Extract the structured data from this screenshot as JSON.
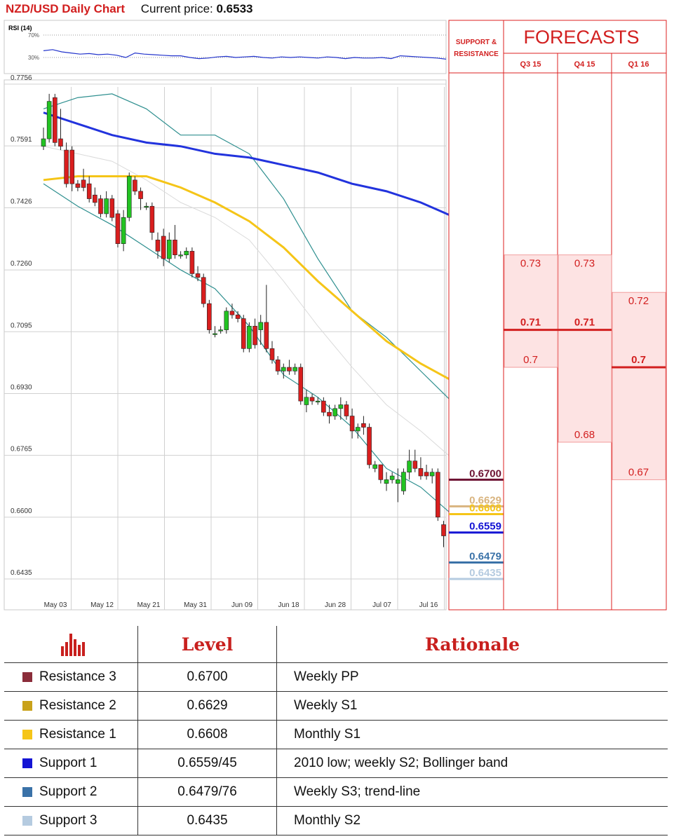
{
  "header": {
    "title": "NZD/USD Daily Chart",
    "price_label": "Current price:",
    "price_value": "0.6533"
  },
  "colors": {
    "accent": "#d21f1f",
    "bullish": "#22c322",
    "bearish": "#d91e1e",
    "sma_long": "#2233dd",
    "sma_short": "#f5c518",
    "bollinger": "#2e8f8f",
    "rsi": "#2233cc"
  },
  "rsi_panel": {
    "label": "RSI (14)",
    "level_high": "70%",
    "level_low": "30%",
    "values": [
      42,
      44,
      40,
      38,
      36,
      37,
      35,
      36,
      34,
      30,
      38,
      36,
      35,
      34,
      33,
      33,
      30,
      28,
      29,
      31,
      32,
      30,
      31,
      32,
      30,
      29,
      31,
      30,
      31,
      30,
      29,
      31,
      30,
      28,
      30,
      29,
      29,
      30,
      28,
      33,
      32,
      31,
      30,
      29,
      27
    ]
  },
  "chart_data": {
    "type": "candlestick",
    "title": "NZD/USD Daily Chart",
    "y_ticks": [
      "0.7756",
      "0.7591",
      "0.7426",
      "0.7260",
      "0.7095",
      "0.6930",
      "0.6765",
      "0.6600",
      "0.6435"
    ],
    "x_ticks": [
      "May 03",
      "May 12",
      "May 21",
      "May 31",
      "Jun 09",
      "Jun 18",
      "Jun 28",
      "Jul 07",
      "Jul 16"
    ],
    "ylim": [
      0.637,
      0.7756
    ],
    "grid": true,
    "candles": [
      [
        0.759,
        0.764,
        0.758,
        0.761
      ],
      [
        0.761,
        0.773,
        0.76,
        0.771
      ],
      [
        0.772,
        0.773,
        0.759,
        0.76
      ],
      [
        0.761,
        0.769,
        0.758,
        0.759
      ],
      [
        0.758,
        0.76,
        0.748,
        0.749
      ],
      [
        0.758,
        0.759,
        0.747,
        0.749
      ],
      [
        0.749,
        0.75,
        0.747,
        0.748
      ],
      [
        0.75,
        0.753,
        0.747,
        0.748
      ],
      [
        0.749,
        0.751,
        0.744,
        0.745
      ],
      [
        0.746,
        0.748,
        0.743,
        0.744
      ],
      [
        0.745,
        0.746,
        0.74,
        0.741
      ],
      [
        0.741,
        0.747,
        0.74,
        0.745
      ],
      [
        0.745,
        0.746,
        0.739,
        0.74
      ],
      [
        0.741,
        0.742,
        0.732,
        0.733
      ],
      [
        0.733,
        0.742,
        0.731,
        0.74
      ],
      [
        0.74,
        0.752,
        0.739,
        0.751
      ],
      [
        0.75,
        0.751,
        0.746,
        0.747
      ],
      [
        0.747,
        0.748,
        0.742,
        0.745
      ],
      [
        0.743,
        0.744,
        0.742,
        0.743
      ],
      [
        0.743,
        0.744,
        0.734,
        0.736
      ],
      [
        0.734,
        0.736,
        0.729,
        0.731
      ],
      [
        0.735,
        0.737,
        0.727,
        0.729
      ],
      [
        0.729,
        0.736,
        0.728,
        0.734
      ],
      [
        0.734,
        0.738,
        0.729,
        0.73
      ],
      [
        0.73,
        0.731,
        0.729,
        0.73
      ],
      [
        0.73,
        0.732,
        0.729,
        0.731
      ],
      [
        0.731,
        0.732,
        0.724,
        0.725
      ],
      [
        0.725,
        0.727,
        0.723,
        0.724
      ],
      [
        0.724,
        0.725,
        0.716,
        0.717
      ],
      [
        0.717,
        0.718,
        0.709,
        0.71
      ],
      [
        0.709,
        0.711,
        0.708,
        0.709
      ],
      [
        0.71,
        0.711,
        0.709,
        0.71
      ],
      [
        0.71,
        0.716,
        0.709,
        0.715
      ],
      [
        0.715,
        0.717,
        0.713,
        0.714
      ],
      [
        0.714,
        0.715,
        0.712,
        0.713
      ],
      [
        0.713,
        0.714,
        0.704,
        0.705
      ],
      [
        0.705,
        0.712,
        0.704,
        0.711
      ],
      [
        0.711,
        0.713,
        0.705,
        0.706
      ],
      [
        0.71,
        0.714,
        0.706,
        0.712
      ],
      [
        0.712,
        0.722,
        0.704,
        0.705
      ],
      [
        0.705,
        0.707,
        0.701,
        0.702
      ],
      [
        0.702,
        0.703,
        0.698,
        0.699
      ],
      [
        0.699,
        0.701,
        0.697,
        0.7
      ],
      [
        0.7,
        0.702,
        0.698,
        0.699
      ],
      [
        0.699,
        0.701,
        0.698,
        0.7
      ],
      [
        0.7,
        0.701,
        0.69,
        0.691
      ],
      [
        0.69,
        0.694,
        0.688,
        0.692
      ],
      [
        0.692,
        0.693,
        0.69,
        0.691
      ],
      [
        0.691,
        0.692,
        0.69,
        0.691
      ],
      [
        0.691,
        0.692,
        0.687,
        0.688
      ],
      [
        0.688,
        0.69,
        0.685,
        0.687
      ],
      [
        0.687,
        0.69,
        0.686,
        0.689
      ],
      [
        0.689,
        0.692,
        0.686,
        0.69
      ],
      [
        0.69,
        0.691,
        0.686,
        0.687
      ],
      [
        0.687,
        0.689,
        0.681,
        0.683
      ],
      [
        0.683,
        0.685,
        0.681,
        0.684
      ],
      [
        0.685,
        0.687,
        0.682,
        0.684
      ],
      [
        0.684,
        0.685,
        0.673,
        0.674
      ],
      [
        0.673,
        0.675,
        0.672,
        0.674
      ],
      [
        0.674,
        0.674,
        0.669,
        0.67
      ],
      [
        0.669,
        0.672,
        0.667,
        0.67
      ],
      [
        0.67,
        0.672,
        0.669,
        0.671
      ],
      [
        0.669,
        0.673,
        0.664,
        0.67
      ],
      [
        0.667,
        0.673,
        0.666,
        0.672
      ],
      [
        0.672,
        0.678,
        0.67,
        0.675
      ],
      [
        0.675,
        0.678,
        0.672,
        0.673
      ],
      [
        0.673,
        0.676,
        0.67,
        0.671
      ],
      [
        0.672,
        0.674,
        0.67,
        0.671
      ],
      [
        0.671,
        0.673,
        0.669,
        0.672
      ],
      [
        0.672,
        0.673,
        0.659,
        0.66
      ],
      [
        0.658,
        0.659,
        0.652,
        0.655
      ]
    ],
    "sma_long": [
      [
        0,
        0.768
      ],
      [
        6,
        0.765
      ],
      [
        12,
        0.762
      ],
      [
        18,
        0.76
      ],
      [
        24,
        0.759
      ],
      [
        30,
        0.757
      ],
      [
        36,
        0.756
      ],
      [
        42,
        0.754
      ],
      [
        48,
        0.752
      ],
      [
        54,
        0.749
      ],
      [
        60,
        0.747
      ],
      [
        66,
        0.744
      ],
      [
        72,
        0.74
      ]
    ],
    "sma_short": [
      [
        0,
        0.75
      ],
      [
        6,
        0.751
      ],
      [
        12,
        0.751
      ],
      [
        18,
        0.751
      ],
      [
        24,
        0.748
      ],
      [
        30,
        0.744
      ],
      [
        36,
        0.739
      ],
      [
        42,
        0.732
      ],
      [
        48,
        0.723
      ],
      [
        54,
        0.715
      ],
      [
        60,
        0.707
      ],
      [
        66,
        0.701
      ],
      [
        72,
        0.696
      ]
    ],
    "bollinger_upper": [
      [
        0,
        0.769
      ],
      [
        6,
        0.772
      ],
      [
        12,
        0.773
      ],
      [
        18,
        0.769
      ],
      [
        24,
        0.762
      ],
      [
        30,
        0.762
      ],
      [
        36,
        0.757
      ],
      [
        42,
        0.745
      ],
      [
        48,
        0.729
      ],
      [
        54,
        0.715
      ],
      [
        60,
        0.708
      ],
      [
        66,
        0.699
      ],
      [
        72,
        0.69
      ]
    ],
    "bollinger_lower": [
      [
        0,
        0.749
      ],
      [
        6,
        0.743
      ],
      [
        12,
        0.738
      ],
      [
        18,
        0.732
      ],
      [
        24,
        0.726
      ],
      [
        30,
        0.721
      ],
      [
        36,
        0.711
      ],
      [
        42,
        0.698
      ],
      [
        48,
        0.692
      ],
      [
        54,
        0.684
      ],
      [
        60,
        0.673
      ],
      [
        66,
        0.668
      ],
      [
        72,
        0.66
      ]
    ],
    "bollinger_mid": [
      [
        0,
        0.759
      ],
      [
        6,
        0.757
      ],
      [
        12,
        0.755
      ],
      [
        18,
        0.75
      ],
      [
        24,
        0.744
      ],
      [
        30,
        0.74
      ],
      [
        36,
        0.734
      ],
      [
        42,
        0.723
      ],
      [
        48,
        0.711
      ],
      [
        54,
        0.7
      ],
      [
        60,
        0.69
      ],
      [
        66,
        0.683
      ],
      [
        72,
        0.675
      ]
    ],
    "support_resistance": [
      {
        "level": 0.67,
        "label": "0.6700",
        "color": "#6d1232"
      },
      {
        "level": 0.6629,
        "label": "0.6629",
        "color": "#d9b47f"
      },
      {
        "level": 0.6608,
        "label": "0.6608",
        "color": "#f5c518"
      },
      {
        "level": 0.6559,
        "label": "0.6559",
        "color": "#1414d4"
      },
      {
        "level": 0.6479,
        "label": "0.6479",
        "color": "#3a72a8"
      },
      {
        "level": 0.6435,
        "label": "0.6435",
        "color": "#b5cbe0"
      }
    ]
  },
  "forecasts": {
    "sr_header": [
      "SUPPORT &",
      "RESISTANCE"
    ],
    "title": "FORECASTS",
    "columns": [
      {
        "label": "Q3 15",
        "high": 0.73,
        "mid": 0.71,
        "low": 0.7,
        "high_label": "0.73",
        "mid_label": "0.71",
        "low_label": "0.7"
      },
      {
        "label": "Q4 15",
        "high": 0.73,
        "mid": 0.71,
        "low": 0.68,
        "high_label": "0.73",
        "mid_label": "0.71",
        "low_label": "0.68"
      },
      {
        "label": "Q1 16",
        "high": 0.72,
        "mid": 0.7,
        "low": 0.67,
        "high_label": "0.72",
        "mid_label": "0.7",
        "low_label": "0.67"
      }
    ]
  },
  "levels_table": {
    "header_level": "Level",
    "header_rationale": "Rationale",
    "rows": [
      {
        "name": "Resistance 3",
        "level": "0.6700",
        "rationale": "Weekly PP",
        "color": "#8b2d3a"
      },
      {
        "name": "Resistance 2",
        "level": "0.6629",
        "rationale": "Weekly S1",
        "color": "#c9a21a"
      },
      {
        "name": "Resistance 1",
        "level": "0.6608",
        "rationale": "Monthly S1",
        "color": "#f5c518"
      },
      {
        "name": "Support 1",
        "level": "0.6559/45",
        "rationale": "2010 low; weekly S2; Bollinger band",
        "color": "#1414d4"
      },
      {
        "name": "Support 2",
        "level": "0.6479/76",
        "rationale": "Weekly S3; trend-line",
        "color": "#3a72a8"
      },
      {
        "name": "Support 3",
        "level": "0.6435",
        "rationale": "Monthly S2",
        "color": "#b5cbe0"
      }
    ]
  }
}
